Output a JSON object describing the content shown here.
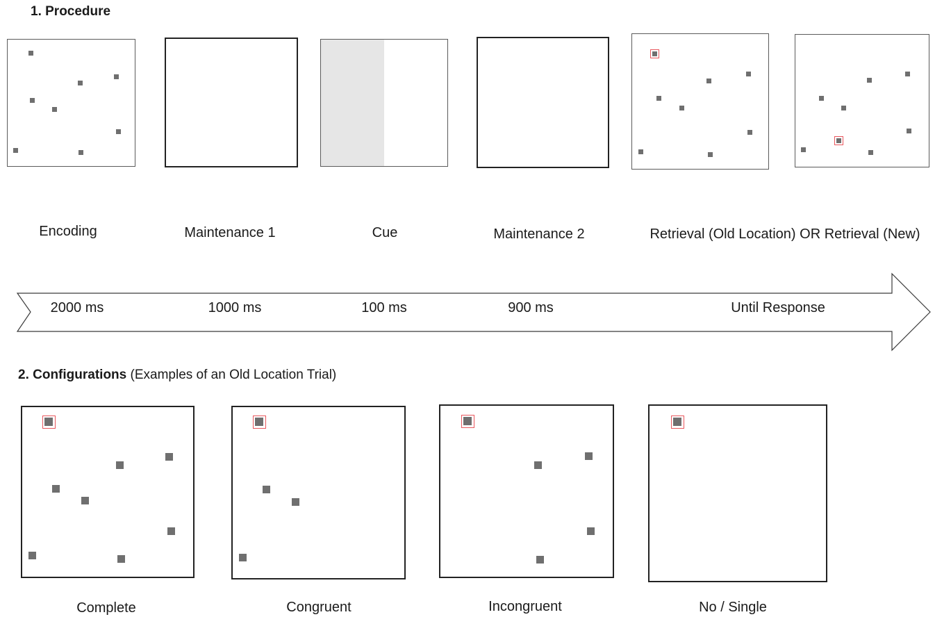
{
  "procedure": {
    "heading": "1. Procedure",
    "labels": {
      "encoding": "Encoding",
      "maintenance1": "Maintenance 1",
      "cue": "Cue",
      "maintenance2": "Maintenance 2",
      "retrieval": "Retrieval (Old Location) OR Retrieval (New)"
    },
    "timeline": {
      "t1": "2000 ms",
      "t2": "1000 ms",
      "t3": "100 ms",
      "t4": "900 ms",
      "t5": "Until Response"
    }
  },
  "configurations": {
    "heading_bold": "2. Configurations",
    "heading_rest": " (Examples of an Old Location Trial)",
    "labels": {
      "complete": "Complete",
      "congruent": "Congruent",
      "incongruent": "Incongruent",
      "no_single": "No / Single"
    }
  },
  "colors": {
    "stimulus": "#6f6f6f",
    "highlight": "#e8565c",
    "cue_shade": "#e6e6e6"
  }
}
